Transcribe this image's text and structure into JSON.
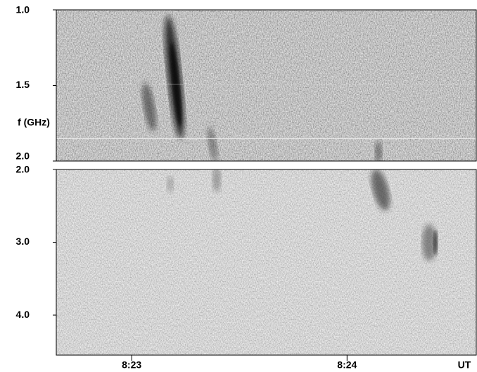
{
  "chart_data": [
    {
      "type": "spectrogram",
      "ylabel": "f (GHz)",
      "ylim": [
        1.0,
        2.0
      ],
      "yticks": [
        {
          "value": 1.0,
          "label": "1.0"
        },
        {
          "value": 1.5,
          "label": "1.5"
        },
        {
          "value": 2.0,
          "label": "2.0"
        }
      ]
    },
    {
      "type": "spectrogram",
      "ylim": [
        2.0,
        4.55
      ],
      "yticks": [
        {
          "value": 2.0,
          "label": "2.0"
        },
        {
          "value": 3.0,
          "label": "3.0"
        },
        {
          "value": 4.0,
          "label": "4.0"
        }
      ],
      "xlabel": "UT",
      "xlim": [
        30159,
        30276
      ],
      "xticks": [
        {
          "value": 30180,
          "label": "8:23"
        },
        {
          "value": 30240,
          "label": "8:24"
        }
      ]
    }
  ]
}
